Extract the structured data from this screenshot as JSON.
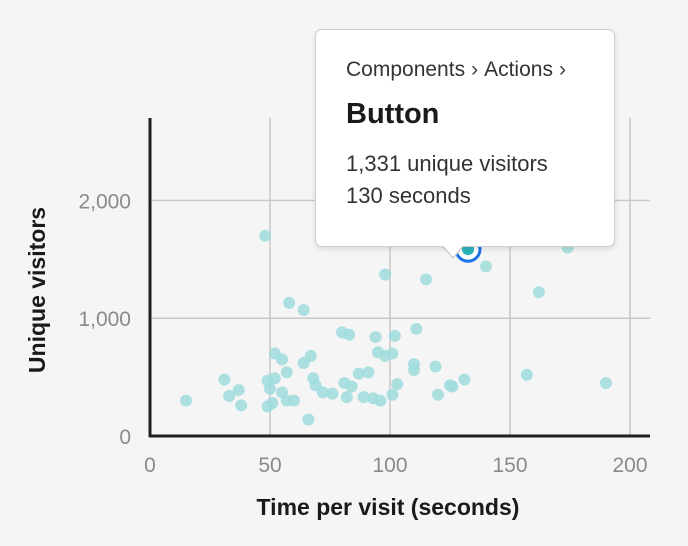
{
  "chart_data": {
    "type": "scatter",
    "xlabel": "Time per visit (seconds)",
    "ylabel": "Unique visitors",
    "xlim": [
      0,
      200
    ],
    "ylim": [
      0,
      2700
    ],
    "xticks": [
      0,
      50,
      100,
      150,
      200
    ],
    "yticks": [
      0,
      1000,
      2000
    ],
    "xtick_labels": [
      "0",
      "50",
      "100",
      "150",
      "200"
    ],
    "ytick_labels": [
      "0",
      "1,000",
      "2,000"
    ],
    "grid": true,
    "point_color": "#9fdcdc",
    "points": [
      {
        "x": 48,
        "y": 1700
      },
      {
        "x": 98,
        "y": 1370
      },
      {
        "x": 115,
        "y": 1330
      },
      {
        "x": 140,
        "y": 1440
      },
      {
        "x": 174,
        "y": 1600
      },
      {
        "x": 162,
        "y": 1220
      },
      {
        "x": 58,
        "y": 1130
      },
      {
        "x": 64,
        "y": 1070
      },
      {
        "x": 111,
        "y": 910
      },
      {
        "x": 80,
        "y": 880
      },
      {
        "x": 83,
        "y": 860
      },
      {
        "x": 94,
        "y": 840
      },
      {
        "x": 102,
        "y": 850
      },
      {
        "x": 101,
        "y": 700
      },
      {
        "x": 95,
        "y": 710
      },
      {
        "x": 98,
        "y": 680
      },
      {
        "x": 52,
        "y": 700
      },
      {
        "x": 55,
        "y": 650
      },
      {
        "x": 67,
        "y": 680
      },
      {
        "x": 64,
        "y": 620
      },
      {
        "x": 110,
        "y": 610
      },
      {
        "x": 110,
        "y": 560
      },
      {
        "x": 119,
        "y": 590
      },
      {
        "x": 57,
        "y": 540
      },
      {
        "x": 68,
        "y": 490
      },
      {
        "x": 87,
        "y": 530
      },
      {
        "x": 91,
        "y": 540
      },
      {
        "x": 103,
        "y": 440
      },
      {
        "x": 157,
        "y": 520
      },
      {
        "x": 190,
        "y": 450
      },
      {
        "x": 49,
        "y": 470
      },
      {
        "x": 52,
        "y": 490
      },
      {
        "x": 31,
        "y": 480
      },
      {
        "x": 37,
        "y": 390
      },
      {
        "x": 33,
        "y": 340
      },
      {
        "x": 50,
        "y": 400
      },
      {
        "x": 55,
        "y": 370
      },
      {
        "x": 69,
        "y": 430
      },
      {
        "x": 72,
        "y": 370
      },
      {
        "x": 76,
        "y": 360
      },
      {
        "x": 81,
        "y": 450
      },
      {
        "x": 84,
        "y": 420
      },
      {
        "x": 15,
        "y": 300
      },
      {
        "x": 38,
        "y": 260
      },
      {
        "x": 49,
        "y": 250
      },
      {
        "x": 51,
        "y": 280
      },
      {
        "x": 57,
        "y": 300
      },
      {
        "x": 60,
        "y": 300
      },
      {
        "x": 82,
        "y": 330
      },
      {
        "x": 89,
        "y": 330
      },
      {
        "x": 93,
        "y": 320
      },
      {
        "x": 96,
        "y": 300
      },
      {
        "x": 101,
        "y": 350
      },
      {
        "x": 120,
        "y": 350
      },
      {
        "x": 125,
        "y": 430
      },
      {
        "x": 126,
        "y": 420
      },
      {
        "x": 131,
        "y": 480
      },
      {
        "x": 66,
        "y": 140
      }
    ],
    "highlighted_point": {
      "x": 130,
      "y": 1331,
      "fill_color": "#2bb5bd",
      "ring_color": "#1a73e8"
    }
  },
  "tooltip": {
    "breadcrumb": [
      "Components",
      "Actions"
    ],
    "separator": "›",
    "title": "Button",
    "visitors_text": "1,331 unique visitors",
    "time_text": "130 seconds"
  }
}
